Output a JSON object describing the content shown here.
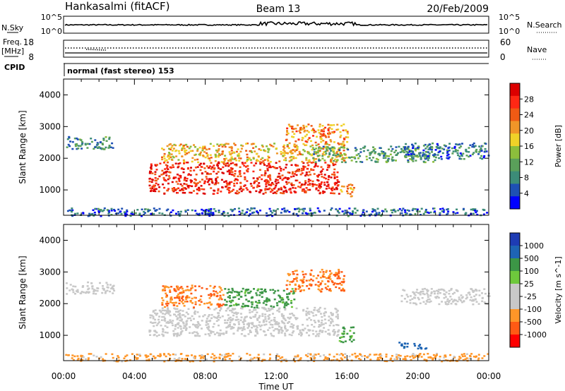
{
  "header": {
    "station": "Hankasalmi (fitACF)",
    "beam": "Beam 13",
    "date": "20/Feb/2009"
  },
  "strip_labels": {
    "nsky": "N.Sky",
    "nsky_ticks": [
      "10^5",
      "10^0"
    ],
    "nsearch": "N.Search",
    "nsearch_ticks": [
      "10^5",
      "10^0"
    ],
    "freq": "Freq.",
    "freq_unit": "[MHz]",
    "freq_ticks": [
      "18",
      "8"
    ],
    "nave": "Nave",
    "nave_ticks": [
      "60",
      "0"
    ],
    "cpid": "CPID",
    "cpid_text": "normal (fast stereo) 153"
  },
  "colors": {
    "power_scale": [
      "#0000ff",
      "#1e50b4",
      "#3c8c78",
      "#5aa05a",
      "#8cbe3c",
      "#f0d228",
      "#f09628",
      "#f05a14",
      "#ff2814",
      "#dc0000"
    ],
    "velocity_scale": [
      "#ff0000",
      "#ff5a14",
      "#ff9628",
      "#c8c8c8",
      "#c8c8c8",
      "#6ec83c",
      "#3c9646",
      "#1e64b4",
      "#1e3cb4"
    ],
    "ground_scatter": "#bebeb4"
  },
  "chart_data": [
    {
      "type": "heatmap",
      "title": "",
      "xlabel": "Time UT",
      "ylabel": "Slant Range [km]",
      "x_ticks": [
        "00:00",
        "04:00",
        "08:00",
        "12:00",
        "16:00",
        "20:00",
        "00:00"
      ],
      "y_ticks": [
        "1000",
        "2000",
        "3000",
        "4000"
      ],
      "xlim_hours": [
        0,
        24
      ],
      "ylim_km": [
        200,
        4500
      ],
      "colorbar": {
        "label": "Power [dB]",
        "ticks": [
          "28",
          "24",
          "20",
          "16",
          "12",
          "8",
          "4"
        ],
        "range": [
          0,
          30
        ]
      },
      "echo_regions": [
        {
          "t0": 0.1,
          "t1": 2.9,
          "r0": 2300,
          "r1": 2700,
          "value": 8
        },
        {
          "t0": 4.8,
          "t1": 15.5,
          "r0": 900,
          "r1": 1900,
          "value": 26
        },
        {
          "t0": 5.5,
          "t1": 16.0,
          "r0": 1900,
          "r1": 2500,
          "value": 18
        },
        {
          "t0": 12.5,
          "t1": 16.0,
          "r0": 2500,
          "r1": 3100,
          "value": 20
        },
        {
          "t0": 14.0,
          "t1": 21.0,
          "r0": 1900,
          "r1": 2400,
          "value": 10
        },
        {
          "t0": 15.6,
          "t1": 16.4,
          "r0": 800,
          "r1": 1200,
          "value": 20
        },
        {
          "t0": 19.0,
          "t1": 24.0,
          "r0": 2000,
          "r1": 2500,
          "value": 6
        },
        {
          "t0": 0.0,
          "t1": 24.0,
          "r0": 200,
          "r1": 450,
          "value": 5
        }
      ]
    },
    {
      "type": "heatmap",
      "title": "",
      "xlabel": "Time UT",
      "ylabel": "Slant Range [km]",
      "x_ticks": [
        "00:00",
        "04:00",
        "08:00",
        "12:00",
        "16:00",
        "20:00",
        "00:00"
      ],
      "y_ticks": [
        "1000",
        "2000",
        "3000",
        "4000"
      ],
      "xlim_hours": [
        0,
        24
      ],
      "ylim_km": [
        200,
        4500
      ],
      "colorbar": {
        "label": "Velocity [m s^-1]",
        "ticks": [
          "1000",
          "500",
          "100",
          "25",
          "-25",
          "-100",
          "-500",
          "-1000"
        ],
        "range": [
          -1000,
          1000
        ]
      },
      "echo_regions": [
        {
          "t0": 0.1,
          "t1": 2.9,
          "r0": 2300,
          "r1": 2700,
          "value": 0
        },
        {
          "t0": 4.8,
          "t1": 15.5,
          "r0": 1000,
          "r1": 1900,
          "value": 0
        },
        {
          "t0": 5.5,
          "t1": 9.0,
          "r0": 1900,
          "r1": 2600,
          "value": -300
        },
        {
          "t0": 9.0,
          "t1": 13.0,
          "r0": 1900,
          "r1": 2500,
          "value": 150
        },
        {
          "t0": 12.5,
          "t1": 15.8,
          "r0": 2400,
          "r1": 3100,
          "value": -300
        },
        {
          "t0": 15.5,
          "t1": 16.4,
          "r0": 800,
          "r1": 1300,
          "value": 150
        },
        {
          "t0": 18.8,
          "t1": 20.5,
          "r0": 600,
          "r1": 800,
          "value": 400
        },
        {
          "t0": 19.0,
          "t1": 24.0,
          "r0": 2000,
          "r1": 2500,
          "value": 0
        },
        {
          "t0": 0.0,
          "t1": 24.0,
          "r0": 200,
          "r1": 450,
          "value": -150
        }
      ]
    }
  ]
}
